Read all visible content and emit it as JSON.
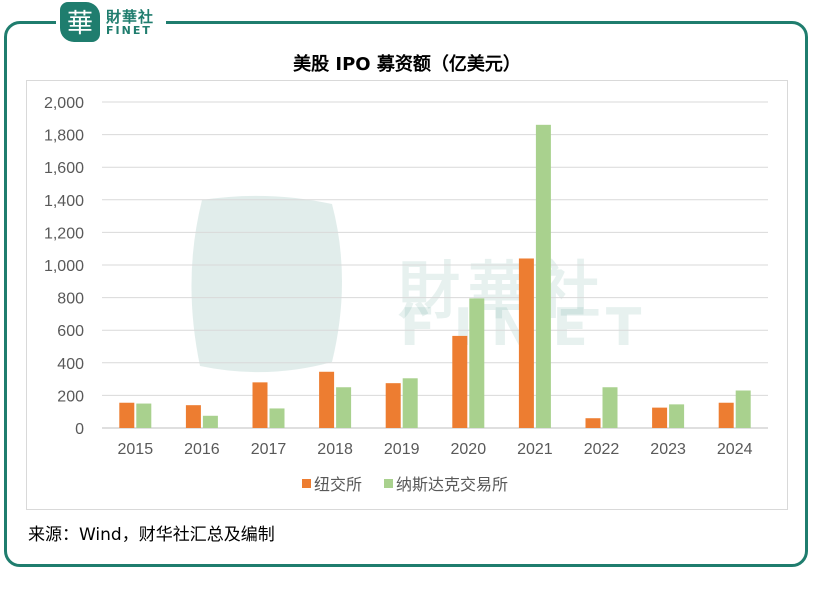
{
  "brand": {
    "seal_char": "華",
    "name_cn": "財華社",
    "name_en": "FINET",
    "color": "#1f7d6e"
  },
  "chart_data": {
    "type": "bar",
    "title": "美股 IPO 募资额（亿美元）",
    "categories": [
      "2015",
      "2016",
      "2017",
      "2018",
      "2019",
      "2020",
      "2021",
      "2022",
      "2023",
      "2024"
    ],
    "series": [
      {
        "name": "纽交所",
        "color": "#ed7d31",
        "values": [
          155,
          140,
          280,
          345,
          275,
          565,
          1040,
          60,
          125,
          155
        ]
      },
      {
        "name": "纳斯达克交易所",
        "color": "#a9d18e",
        "values": [
          150,
          75,
          120,
          250,
          305,
          795,
          1860,
          250,
          145,
          230
        ]
      }
    ],
    "ylim": [
      0,
      2000
    ],
    "yticks": [
      "0",
      "200",
      "400",
      "600",
      "800",
      "1,000",
      "1,200",
      "1,400",
      "1,600",
      "1,800",
      "2,000"
    ],
    "grid": true,
    "legend": "bottom"
  },
  "source": "来源：Wind，财华社汇总及编制"
}
